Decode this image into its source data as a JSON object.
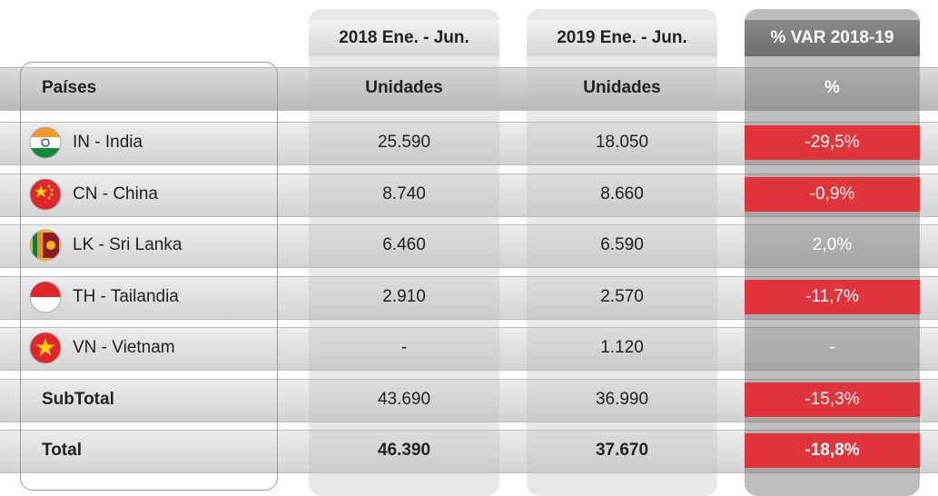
{
  "header": {
    "columns": [
      "2018 Ene. - Jun.",
      "2019 Ene. - Jun.",
      "% VAR 2018-19"
    ]
  },
  "table": {
    "header": [
      "Países",
      "Unidades",
      "Unidades",
      "%"
    ],
    "rows": [
      [
        "IN - India",
        "25.590",
        "18.050",
        "-29,5%"
      ],
      [
        "CN - China",
        "8.740",
        "8.660",
        "-0,9%"
      ],
      [
        "LK - Sri Lanka",
        "6.460",
        "6.590",
        "2,0%"
      ],
      [
        "TH - Tailandia",
        "2.910",
        "2.570",
        "-11,7%"
      ],
      [
        "VN - Vietnam",
        "-",
        "1.120",
        "-"
      ],
      [
        "SubTotal",
        "43.690",
        "36.990",
        "-15,3%"
      ],
      [
        "Total",
        "46.390",
        "37.670",
        "-18,8%"
      ]
    ]
  }
}
